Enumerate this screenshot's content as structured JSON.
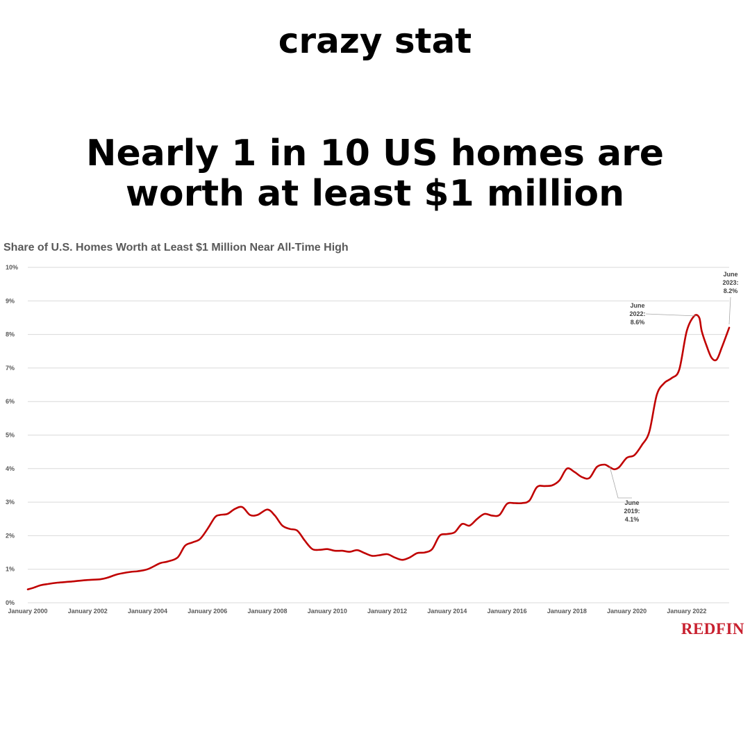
{
  "post": {
    "caption": "crazy stat",
    "headline_lines": [
      "Nearly 1 in 10 US homes are",
      "worth at least $1 million"
    ]
  },
  "brand": {
    "name": "REDFIN",
    "color": "#c8202f"
  },
  "chart_data": {
    "type": "line",
    "title": "Share of U.S. Homes Worth at Least $1 Million Near All-Time High",
    "xlabel": "",
    "ylabel": "",
    "ylim": [
      0,
      10
    ],
    "y_ticks": [
      0,
      1,
      2,
      3,
      4,
      5,
      6,
      7,
      8,
      9,
      10
    ],
    "y_tick_labels": [
      "0%",
      "1%",
      "2%",
      "3%",
      "4%",
      "5%",
      "6%",
      "7%",
      "8%",
      "9%",
      "10%"
    ],
    "x_ticks": [
      "2000-01",
      "2002-01",
      "2004-01",
      "2006-01",
      "2008-01",
      "2010-01",
      "2012-01",
      "2014-01",
      "2016-01",
      "2018-01",
      "2020-01",
      "2022-01"
    ],
    "x_tick_labels": [
      "January 2000",
      "January 2002",
      "January 2004",
      "January 2006",
      "January 2008",
      "January 2010",
      "January 2012",
      "January 2014",
      "January 2016",
      "January 2018",
      "January 2020",
      "January 2022"
    ],
    "grid": true,
    "line_color": "#c00000",
    "grid_color": "#d9d9d9",
    "series": [
      {
        "x": [
          "2000-01",
          "2000-03",
          "2000-06",
          "2000-09",
          "2001-01",
          "2001-06",
          "2002-01",
          "2002-06",
          "2002-09",
          "2003-01",
          "2003-06",
          "2003-09",
          "2004-01",
          "2004-06",
          "2004-09",
          "2005-01",
          "2005-04",
          "2005-07",
          "2005-10",
          "2006-01",
          "2006-04",
          "2006-06",
          "2006-09",
          "2006-12",
          "2007-03",
          "2007-06",
          "2007-09",
          "2008-01",
          "2008-04",
          "2008-07",
          "2008-10",
          "2009-01",
          "2009-04",
          "2009-07",
          "2009-10",
          "2010-01",
          "2010-04",
          "2010-07",
          "2010-10",
          "2011-01",
          "2011-04",
          "2011-07",
          "2011-10",
          "2012-01",
          "2012-04",
          "2012-07",
          "2012-10",
          "2013-01",
          "2013-04",
          "2013-07",
          "2013-10",
          "2014-01",
          "2014-04",
          "2014-07",
          "2014-10",
          "2015-01",
          "2015-04",
          "2015-07",
          "2015-10",
          "2016-01",
          "2016-04",
          "2016-07",
          "2016-10",
          "2017-01",
          "2017-04",
          "2017-07",
          "2017-10",
          "2018-01",
          "2018-04",
          "2018-07",
          "2018-10",
          "2019-01",
          "2019-04",
          "2019-06",
          "2019-08",
          "2019-10",
          "2020-01",
          "2020-04",
          "2020-07",
          "2020-10",
          "2021-01",
          "2021-04",
          "2021-07",
          "2021-10",
          "2022-01",
          "2022-04",
          "2022-06",
          "2022-07",
          "2022-09",
          "2022-11",
          "2023-01",
          "2023-03",
          "2023-06"
        ],
        "y": [
          0.4,
          0.44,
          0.52,
          0.56,
          0.6,
          0.63,
          0.68,
          0.7,
          0.75,
          0.85,
          0.92,
          0.94,
          1.0,
          1.18,
          1.23,
          1.35,
          1.7,
          1.8,
          1.9,
          2.2,
          2.55,
          2.62,
          2.65,
          2.8,
          2.85,
          2.62,
          2.62,
          2.78,
          2.6,
          2.3,
          2.2,
          2.15,
          1.85,
          1.6,
          1.58,
          1.6,
          1.55,
          1.55,
          1.52,
          1.57,
          1.48,
          1.4,
          1.42,
          1.45,
          1.35,
          1.28,
          1.35,
          1.48,
          1.5,
          1.6,
          2.0,
          2.05,
          2.1,
          2.35,
          2.3,
          2.5,
          2.65,
          2.6,
          2.62,
          2.95,
          2.97,
          2.97,
          3.05,
          3.45,
          3.48,
          3.5,
          3.65,
          4.0,
          3.9,
          3.75,
          3.72,
          4.05,
          4.12,
          4.05,
          3.98,
          4.05,
          4.32,
          4.4,
          4.7,
          5.1,
          6.2,
          6.55,
          6.7,
          6.95,
          8.1,
          8.55,
          8.5,
          8.1,
          7.65,
          7.3,
          7.25,
          7.6,
          8.2
        ]
      }
    ],
    "annotations": [
      {
        "label_lines": [
          "June",
          "2019:",
          "4.1%"
        ],
        "x": "2019-06",
        "y": 4.1
      },
      {
        "label_lines": [
          "June",
          "2022:",
          "8.6%"
        ],
        "x": "2022-06",
        "y": 8.6
      },
      {
        "label_lines": [
          "June",
          "2023:",
          "8.2%"
        ],
        "x": "2023-06",
        "y": 8.2
      }
    ]
  }
}
